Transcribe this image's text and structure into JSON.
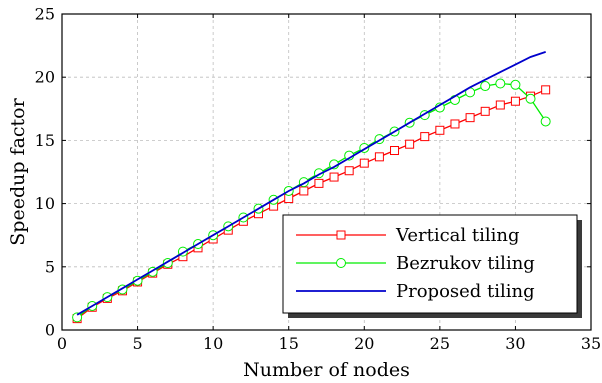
{
  "chart_data": {
    "type": "line",
    "title": "",
    "xlabel": "Number of nodes",
    "ylabel": "Speedup factor",
    "xlim": [
      0,
      35
    ],
    "ylim": [
      0,
      25
    ],
    "xticks": [
      0,
      5,
      10,
      15,
      20,
      25,
      30,
      35
    ],
    "yticks": [
      0,
      5,
      10,
      15,
      20,
      25
    ],
    "grid": true,
    "legend_position": "bottom-right",
    "series": [
      {
        "name": "Vertical tiling",
        "color": "#ff0000",
        "marker": "square",
        "x": [
          1,
          2,
          3,
          4,
          5,
          6,
          7,
          8,
          9,
          10,
          11,
          12,
          13,
          14,
          15,
          16,
          17,
          18,
          19,
          20,
          21,
          22,
          23,
          24,
          25,
          26,
          27,
          28,
          29,
          30,
          31,
          32
        ],
        "y": [
          0.9,
          1.8,
          2.5,
          3.1,
          3.8,
          4.5,
          5.2,
          5.8,
          6.5,
          7.2,
          7.9,
          8.6,
          9.2,
          9.8,
          10.4,
          11.0,
          11.6,
          12.1,
          12.6,
          13.2,
          13.7,
          14.2,
          14.7,
          15.3,
          15.8,
          16.3,
          16.8,
          17.3,
          17.8,
          18.1,
          18.5,
          19.0
        ]
      },
      {
        "name": "Bezrukov tiling",
        "color": "#00ee00",
        "marker": "circle",
        "x": [
          1,
          2,
          3,
          4,
          5,
          6,
          7,
          8,
          9,
          10,
          11,
          12,
          13,
          14,
          15,
          16,
          17,
          18,
          19,
          20,
          21,
          22,
          23,
          24,
          25,
          26,
          27,
          28,
          29,
          30,
          31,
          32
        ],
        "y": [
          1.0,
          1.9,
          2.6,
          3.2,
          3.9,
          4.6,
          5.3,
          6.2,
          6.8,
          7.5,
          8.2,
          8.9,
          9.6,
          10.3,
          11.0,
          11.7,
          12.4,
          13.1,
          13.8,
          14.4,
          15.1,
          15.7,
          16.4,
          17.0,
          17.6,
          18.2,
          18.8,
          19.3,
          19.5,
          19.4,
          18.3,
          16.5
        ]
      },
      {
        "name": "Proposed tiling",
        "color": "#0000cc",
        "marker": "none",
        "x": [
          1,
          2,
          3,
          4,
          5,
          6,
          7,
          8,
          9,
          10,
          11,
          12,
          13,
          14,
          15,
          16,
          17,
          18,
          19,
          20,
          21,
          22,
          23,
          24,
          25,
          26,
          27,
          28,
          29,
          30,
          31,
          32
        ],
        "y": [
          1.2,
          1.9,
          2.6,
          3.3,
          4.0,
          4.7,
          5.4,
          6.1,
          6.8,
          7.5,
          8.2,
          8.9,
          9.6,
          10.3,
          11.0,
          11.6,
          12.3,
          12.9,
          13.6,
          14.3,
          15.0,
          15.7,
          16.4,
          17.1,
          17.8,
          18.5,
          19.2,
          19.8,
          20.4,
          21.0,
          21.6,
          22.0
        ]
      }
    ]
  }
}
